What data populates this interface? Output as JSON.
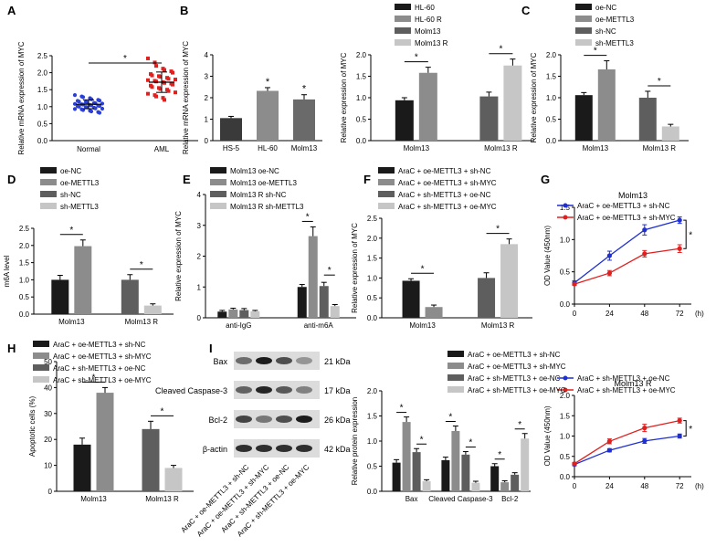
{
  "figure": {
    "blot_labels": [
      "Bax",
      "Cleaved Caspase-3",
      "Bcl-2",
      "β-actin"
    ],
    "blot_sizes": [
      "21 kDa",
      "17 kDa",
      "26 kDa",
      "42 kDa"
    ],
    "blot_lanes": [
      "AraC + oe-METTL3 + sh-NC",
      "AraC + oe-METTL3 + sh-MYC",
      "AraC + sh-METTL3 + oe-NC",
      "AraC + sh-METTL3 + oe-MYC"
    ]
  },
  "chart_data": [
    {
      "id": "A",
      "panel": "A",
      "type": "scatter",
      "ylabel": "Relative mRNA expression of MYC",
      "categories": [
        "Normal",
        "AML"
      ],
      "ylim": [
        0,
        2.5
      ],
      "yticks": [
        0.0,
        0.5,
        1.0,
        1.5,
        2.0,
        2.5
      ],
      "tickfmt": 1,
      "groups": [
        {
          "name": "Normal",
          "color": "#2b3fd6",
          "marker": "circle",
          "points": [
            1.34,
            1.3,
            1.28,
            1.25,
            1.22,
            1.2,
            1.18,
            1.17,
            1.15,
            1.14,
            1.12,
            1.11,
            1.1,
            1.09,
            1.08,
            1.07,
            1.06,
            1.05,
            1.04,
            1.03,
            1.02,
            1.01,
            1.0,
            0.99,
            0.98,
            0.97,
            0.95,
            0.94,
            0.93,
            0.92,
            0.9,
            0.88,
            0.86,
            0.84,
            0.82
          ],
          "mean": 1.07,
          "sd": 0.13
        },
        {
          "name": "AML",
          "color": "#e0201f",
          "marker": "square",
          "points": [
            2.42,
            2.3,
            2.2,
            2.12,
            2.08,
            2.04,
            2.0,
            1.96,
            1.92,
            1.9,
            1.88,
            1.85,
            1.82,
            1.8,
            1.78,
            1.76,
            1.74,
            1.72,
            1.7,
            1.68,
            1.65,
            1.62,
            1.58,
            1.55,
            1.52,
            1.5,
            1.46,
            1.42,
            1.38,
            1.34,
            1.3,
            1.26,
            1.2
          ],
          "mean": 1.72,
          "sd": 0.3
        }
      ],
      "significance": [
        "*"
      ]
    },
    {
      "id": "B1",
      "panel": "B",
      "type": "bar",
      "ylabel": "Relative mRNA expression of MYC",
      "categories": [
        "HS-5",
        "HL-60",
        "Molm13"
      ],
      "ylim": [
        0,
        4
      ],
      "yticks": [
        0,
        1,
        2,
        3,
        4
      ],
      "tickfmt": 0,
      "series": [
        {
          "name": "",
          "colors": [
            "#3a3a3a",
            "#8c8c8c",
            "#6a6a6a"
          ],
          "values": [
            1.05,
            2.32,
            1.92
          ],
          "errors": [
            0.08,
            0.15,
            0.22
          ]
        }
      ],
      "significance": [
        "",
        "*",
        "*"
      ]
    },
    {
      "id": "B2",
      "panel": "",
      "type": "bar",
      "ylabel": "Relative expression of MYC",
      "categories": [
        "Molm13",
        "Molm13 R"
      ],
      "ylim": [
        0,
        2.0
      ],
      "yticks": [
        0.0,
        0.5,
        1.0,
        1.5,
        2.0
      ],
      "tickfmt": 1,
      "series": [
        {
          "name": "HL-60",
          "color": "#1a1a1a",
          "values": [
            0.94,
            null
          ],
          "errors": [
            0.06,
            null
          ]
        },
        {
          "name": "HL-60 R",
          "color": "#8c8c8c",
          "values": [
            1.58,
            null
          ],
          "errors": [
            0.13,
            null
          ]
        },
        {
          "name": "Molm13",
          "color": "#5e5e5e",
          "values": [
            null,
            1.03
          ],
          "errors": [
            null,
            0.1
          ]
        },
        {
          "name": "Molm13 R",
          "color": "#c6c6c6",
          "values": [
            null,
            1.75
          ],
          "errors": [
            null,
            0.15
          ]
        }
      ],
      "significance": [
        "*",
        "*"
      ]
    },
    {
      "id": "C",
      "panel": "C",
      "type": "bar",
      "ylabel": "Relative expression of MYC",
      "categories": [
        "Molm13",
        "Molm13 R"
      ],
      "ylim": [
        0,
        2.0
      ],
      "yticks": [
        0.0,
        0.5,
        1.0,
        1.5,
        2.0
      ],
      "tickfmt": 1,
      "series": [
        {
          "name": "oe-NC",
          "color": "#1a1a1a",
          "values": [
            1.06,
            null
          ],
          "errors": [
            0.06,
            null
          ]
        },
        {
          "name": "oe-METTL3",
          "color": "#8c8c8c",
          "values": [
            1.66,
            null
          ],
          "errors": [
            0.2,
            null
          ]
        },
        {
          "name": "sh-NC",
          "color": "#5e5e5e",
          "values": [
            null,
            1.0
          ],
          "errors": [
            null,
            0.15
          ]
        },
        {
          "name": "sh-METTL3",
          "color": "#c6c6c6",
          "values": [
            null,
            0.33
          ],
          "errors": [
            null,
            0.05
          ]
        }
      ],
      "significance": [
        "*",
        "*"
      ]
    },
    {
      "id": "D",
      "panel": "D",
      "type": "bar",
      "ylabel": "m6A level",
      "categories": [
        "Molm13",
        "Molm13 R"
      ],
      "ylim": [
        0,
        2.5
      ],
      "yticks": [
        0.0,
        0.5,
        1.0,
        1.5,
        2.0,
        2.5
      ],
      "tickfmt": 1,
      "series": [
        {
          "name": "oe-NC",
          "color": "#1a1a1a",
          "values": [
            1.0,
            null
          ],
          "errors": [
            0.13,
            null
          ]
        },
        {
          "name": "oe-METTL3",
          "color": "#8c8c8c",
          "values": [
            1.98,
            null
          ],
          "errors": [
            0.18,
            null
          ]
        },
        {
          "name": "sh-NC",
          "color": "#5e5e5e",
          "values": [
            null,
            1.0
          ],
          "errors": [
            null,
            0.15
          ]
        },
        {
          "name": "sh-METTL3",
          "color": "#c6c6c6",
          "values": [
            null,
            0.25
          ],
          "errors": [
            null,
            0.05
          ]
        }
      ],
      "significance": [
        "*",
        "*"
      ]
    },
    {
      "id": "E",
      "panel": "E",
      "type": "bar",
      "ylabel": "Relative expression of MYC",
      "categories": [
        "anti-IgG",
        "anti-m6A"
      ],
      "ylim": [
        0,
        4
      ],
      "yticks": [
        0,
        1,
        2,
        3,
        4
      ],
      "tickfmt": 0,
      "series": [
        {
          "name": "Molm13 oe-NC",
          "color": "#1a1a1a",
          "values": [
            0.2,
            1.0
          ],
          "errors": [
            0.04,
            0.08
          ]
        },
        {
          "name": "Molm13 oe-METTL3",
          "color": "#8c8c8c",
          "values": [
            0.27,
            2.65
          ],
          "errors": [
            0.04,
            0.3
          ]
        },
        {
          "name": "Molm13 R sh-NC",
          "color": "#5e5e5e",
          "values": [
            0.25,
            1.03
          ],
          "errors": [
            0.05,
            0.12
          ]
        },
        {
          "name": "Molm13 R sh-METTL3",
          "color": "#c6c6c6",
          "values": [
            0.21,
            0.38
          ],
          "errors": [
            0.03,
            0.05
          ]
        }
      ],
      "significance": [
        "",
        "*",
        "*"
      ]
    },
    {
      "id": "F",
      "panel": "F",
      "type": "bar",
      "ylabel": "Relative expression of MYC",
      "categories": [
        "Molm13",
        "Molm13 R"
      ],
      "ylim": [
        0,
        2.5
      ],
      "yticks": [
        0.0,
        0.5,
        1.0,
        1.5,
        2.0,
        2.5
      ],
      "tickfmt": 1,
      "series": [
        {
          "name": "AraC + oe-METTL3 + sh-NC",
          "color": "#1a1a1a",
          "values": [
            0.93,
            null
          ],
          "errors": [
            0.05,
            null
          ]
        },
        {
          "name": "AraC + oe-METTL3 + sh-MYC",
          "color": "#8c8c8c",
          "values": [
            0.27,
            null
          ],
          "errors": [
            0.05,
            null
          ]
        },
        {
          "name": "AraC + sh-METTL3 + oe-NC",
          "color": "#5e5e5e",
          "values": [
            null,
            1.0
          ],
          "errors": [
            null,
            0.13
          ]
        },
        {
          "name": "AraC + sh-METTL3 + oe-MYC",
          "color": "#c6c6c6",
          "values": [
            null,
            1.85
          ],
          "errors": [
            null,
            0.13
          ]
        }
      ],
      "significance": [
        "*",
        "*"
      ]
    },
    {
      "id": "G1",
      "panel": "G",
      "type": "line",
      "title": "Molm13",
      "xlabel": "(h)",
      "ylabel": "OD Value (450nm)",
      "x": [
        0,
        24,
        48,
        72
      ],
      "ylim": [
        0,
        1.5
      ],
      "yticks": [
        0.0,
        0.5,
        1.0,
        1.5
      ],
      "tickfmt": 1,
      "series": [
        {
          "name": "AraC + oe-METTL3 + sh-NC",
          "color": "#1f2fd1",
          "values": [
            0.33,
            0.75,
            1.15,
            1.3
          ],
          "errors": [
            0.03,
            0.07,
            0.08,
            0.05
          ]
        },
        {
          "name": "AraC + oe-METTL3 + sh-MYC",
          "color": "#e0201f",
          "values": [
            0.31,
            0.48,
            0.78,
            0.86
          ],
          "errors": [
            0.02,
            0.04,
            0.05,
            0.06
          ]
        }
      ],
      "significance": [
        "*"
      ]
    },
    {
      "id": "G2",
      "panel": "",
      "type": "line",
      "title": "Molm13 R",
      "xlabel": "(h)",
      "ylabel": "OD Value (450nm)",
      "x": [
        0,
        24,
        48,
        72
      ],
      "ylim": [
        0,
        2.0
      ],
      "yticks": [
        0.0,
        0.5,
        1.0,
        1.5,
        2.0
      ],
      "tickfmt": 1,
      "series": [
        {
          "name": "AraC + sh-METTL3 + oe-NC",
          "color": "#1f2fd1",
          "values": [
            0.3,
            0.65,
            0.88,
            1.0
          ],
          "errors": [
            0.03,
            0.04,
            0.06,
            0.05
          ]
        },
        {
          "name": "AraC + sh-METTL3 + oe-MYC",
          "color": "#e0201f",
          "values": [
            0.32,
            0.87,
            1.2,
            1.38
          ],
          "errors": [
            0.03,
            0.06,
            0.09,
            0.06
          ]
        }
      ],
      "significance": [
        "*"
      ]
    },
    {
      "id": "H",
      "panel": "H",
      "type": "bar",
      "ylabel": "Apoptotic cells (%)",
      "categories": [
        "Molm13",
        "Molm13 R"
      ],
      "ylim": [
        0,
        50
      ],
      "yticks": [
        0,
        10,
        20,
        30,
        40,
        50
      ],
      "tickfmt": 0,
      "series": [
        {
          "name": "AraC + oe-METTL3 + sh-NC",
          "color": "#1a1a1a",
          "values": [
            18,
            null
          ],
          "errors": [
            2.5,
            null
          ]
        },
        {
          "name": "AraC + oe-METTL3 + sh-MYC",
          "color": "#8c8c8c",
          "values": [
            38,
            null
          ],
          "errors": [
            2,
            null
          ]
        },
        {
          "name": "AraC + sh-METTL3 + oe-NC",
          "color": "#5e5e5e",
          "values": [
            null,
            24
          ],
          "errors": [
            null,
            3
          ]
        },
        {
          "name": "AraC + sh-METTL3 + oe-MYC",
          "color": "#c6c6c6",
          "values": [
            null,
            9
          ],
          "errors": [
            null,
            1
          ]
        }
      ],
      "significance": [
        "*",
        "*"
      ]
    },
    {
      "id": "I",
      "panel": "I",
      "type": "bar",
      "ylabel": "Relative protein expression",
      "categories": [
        "Bax",
        "Cleaved Caspase-3",
        "Bcl-2"
      ],
      "ylim": [
        0,
        2.0
      ],
      "yticks": [
        0.0,
        0.5,
        1.0,
        1.5,
        2.0
      ],
      "tickfmt": 1,
      "series": [
        {
          "name": "AraC + oe-METTL3 + sh-NC",
          "color": "#1a1a1a",
          "values": [
            0.57,
            0.62,
            0.5
          ],
          "errors": [
            0.06,
            0.06,
            0.05
          ]
        },
        {
          "name": "AraC + oe-METTL3 + sh-MYC",
          "color": "#8c8c8c",
          "values": [
            1.38,
            1.2,
            0.18
          ],
          "errors": [
            0.1,
            0.1,
            0.03
          ]
        },
        {
          "name": "AraC + sh-METTL3 + oe-NC",
          "color": "#5e5e5e",
          "values": [
            0.78,
            0.73,
            0.33
          ],
          "errors": [
            0.07,
            0.06,
            0.04
          ]
        },
        {
          "name": "AraC + sh-METTL3 + oe-MYC",
          "color": "#c6c6c6",
          "values": [
            0.2,
            0.17,
            1.05
          ],
          "errors": [
            0.03,
            0.03,
            0.1
          ]
        }
      ],
      "significance": [
        "*",
        "*",
        "*",
        "*",
        "*",
        "*"
      ]
    }
  ]
}
